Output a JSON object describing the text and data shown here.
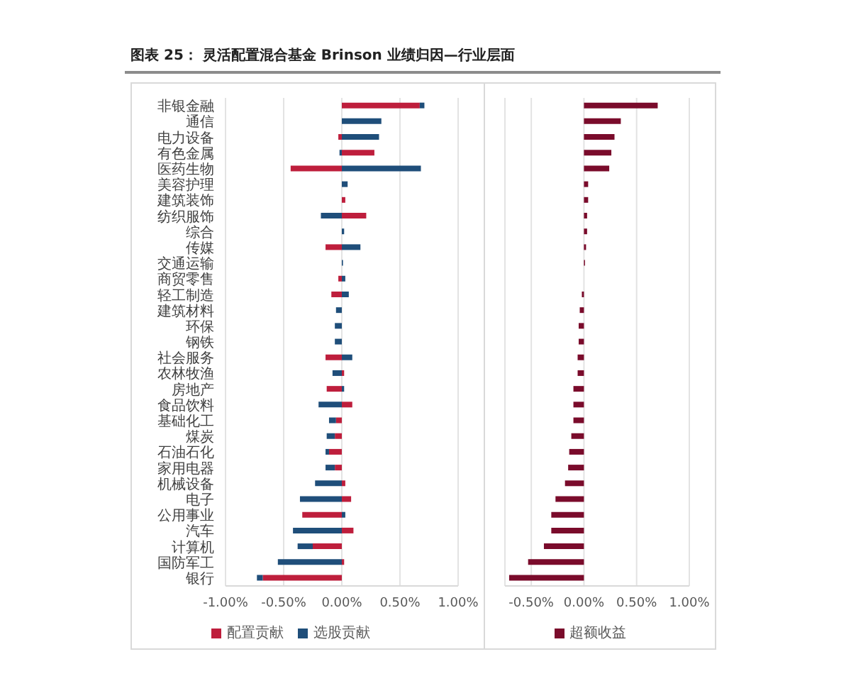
{
  "chart_data": [
    {
      "type": "bar",
      "orientation": "horizontal",
      "stacked": true,
      "title": "图表 25： 灵活配置混合基金 Brinson 业绩归因—行业层面",
      "categories": [
        "非银金融",
        "通信",
        "电力设备",
        "有色金属",
        "医药生物",
        "美容护理",
        "建筑装饰",
        "纺织服饰",
        "综合",
        "传媒",
        "交通运输",
        "商贸零售",
        "轻工制造",
        "建筑材料",
        "环保",
        "钢铁",
        "社会服务",
        "农林牧渔",
        "房地产",
        "食品饮料",
        "基础化工",
        "煤炭",
        "石油石化",
        "家用电器",
        "机械设备",
        "电子",
        "公用事业",
        "汽车",
        "计算机",
        "国防军工",
        "银行"
      ],
      "series": [
        {
          "name": "配置贡献",
          "color": "#be1e3c",
          "values": [
            0.67,
            0,
            -0.03,
            0.28,
            -0.44,
            0,
            0.03,
            0.21,
            0,
            -0.14,
            0,
            -0.03,
            -0.09,
            0,
            0,
            0,
            -0.14,
            0.02,
            -0.13,
            0.09,
            -0.05,
            -0.06,
            -0.11,
            -0.06,
            0.03,
            0.08,
            -0.34,
            0.1,
            -0.25,
            0.02,
            -0.68
          ]
        },
        {
          "name": "选股贡献",
          "color": "#1f4e7a",
          "values": [
            0.04,
            0.34,
            0.32,
            -0.02,
            0.68,
            0.05,
            0,
            -0.18,
            0.02,
            0.16,
            0.01,
            0.03,
            0.06,
            -0.05,
            -0.06,
            -0.06,
            0.09,
            -0.08,
            0.02,
            -0.2,
            -0.06,
            -0.07,
            -0.03,
            -0.08,
            -0.23,
            -0.36,
            0.03,
            -0.42,
            -0.13,
            -0.55,
            -0.05
          ]
        }
      ],
      "xlim": [
        -1,
        1
      ],
      "xticks": [
        {
          "value": -1,
          "label": "-1.00%"
        },
        {
          "value": -0.5,
          "label": "-0.50%"
        },
        {
          "value": 0,
          "label": "0.00%"
        },
        {
          "value": 0.5,
          "label": "0.50%"
        },
        {
          "value": 1,
          "label": "1.00%"
        }
      ],
      "grid": "x",
      "legend": "bottom"
    },
    {
      "type": "bar",
      "orientation": "horizontal",
      "categories": [
        null,
        null,
        null,
        null,
        null,
        null,
        null,
        null,
        null,
        null,
        null,
        null,
        null,
        null,
        null,
        null,
        null,
        null,
        null,
        null,
        null,
        null,
        null,
        null,
        null,
        null,
        null,
        null,
        null,
        null,
        null
      ],
      "series": [
        {
          "name": "超额收益",
          "color": "#7a0b2b",
          "values": [
            0.7,
            0.35,
            0.29,
            0.26,
            0.24,
            0.04,
            0.04,
            0.03,
            0.03,
            0.02,
            0.01,
            0,
            -0.02,
            -0.04,
            -0.05,
            -0.05,
            -0.06,
            -0.06,
            -0.1,
            -0.1,
            -0.1,
            -0.12,
            -0.14,
            -0.15,
            -0.18,
            -0.27,
            -0.31,
            -0.31,
            -0.38,
            -0.53,
            -0.71
          ]
        }
      ],
      "xlim": [
        -0.75,
        1
      ],
      "xticks": [
        {
          "value": -0.5,
          "label": "-0.50%"
        },
        {
          "value": 0,
          "label": "0.00%"
        },
        {
          "value": 0.5,
          "label": "0.50%"
        },
        {
          "value": 1,
          "label": "1.00%"
        }
      ],
      "grid": "x",
      "legend": "bottom"
    }
  ]
}
